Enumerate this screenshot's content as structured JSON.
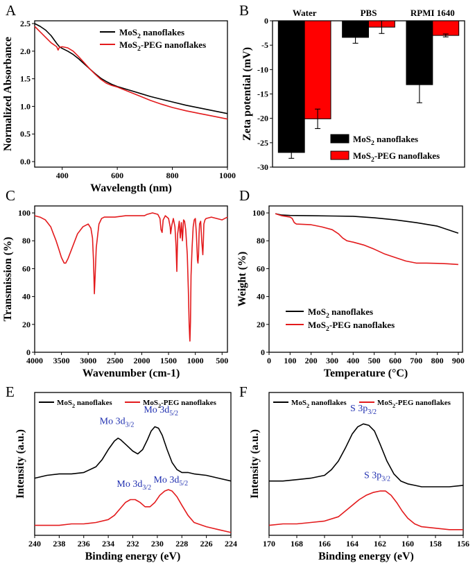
{
  "chart_data": [
    {
      "panel": "A",
      "type": "line",
      "xlabel": "Wavelength (nm)",
      "ylabel": "Normalized Absorbance",
      "xlim": [
        300,
        1000
      ],
      "ylim": [
        -0.1,
        2.55
      ],
      "xticks": [
        400,
        600,
        800,
        1000
      ],
      "yticks": [
        0.0,
        0.5,
        1.0,
        1.5,
        2.0,
        2.5
      ],
      "tick_precision": 1,
      "legend_position": "top-right",
      "series": [
        {
          "name": "MoS2 nanoflakes",
          "color": "#000000",
          "x": [
            300,
            320,
            340,
            360,
            380,
            390,
            400,
            420,
            440,
            460,
            480,
            500,
            520,
            540,
            560,
            580,
            600,
            640,
            680,
            720,
            760,
            800,
            850,
            900,
            950,
            1000
          ],
          "y": [
            2.5,
            2.45,
            2.38,
            2.28,
            2.14,
            2.08,
            2.05,
            2.0,
            1.94,
            1.86,
            1.77,
            1.68,
            1.59,
            1.51,
            1.45,
            1.4,
            1.36,
            1.3,
            1.24,
            1.18,
            1.13,
            1.08,
            1.02,
            0.97,
            0.92,
            0.87
          ]
        },
        {
          "name": "MoS2-PEG nanoflakes",
          "color": "#e31a1c",
          "x": [
            300,
            320,
            340,
            360,
            380,
            385,
            390,
            400,
            420,
            440,
            460,
            480,
            500,
            520,
            540,
            560,
            580,
            600,
            640,
            680,
            720,
            760,
            800,
            850,
            900,
            950,
            1000
          ],
          "y": [
            2.45,
            2.35,
            2.25,
            2.15,
            2.08,
            2.02,
            2.07,
            2.08,
            2.06,
            2.0,
            1.9,
            1.79,
            1.68,
            1.58,
            1.49,
            1.42,
            1.38,
            1.35,
            1.27,
            1.19,
            1.11,
            1.04,
            0.98,
            0.92,
            0.87,
            0.82,
            0.77
          ]
        }
      ]
    },
    {
      "panel": "B",
      "type": "bar",
      "ylabel": "Zeta potential (mV)",
      "categories": [
        "Water",
        "PBS",
        "RPMI 1640"
      ],
      "ylim": [
        -30,
        0
      ],
      "yticks": [
        0,
        -5,
        -10,
        -15,
        -20,
        -25,
        -30
      ],
      "tick_precision": 0,
      "legend_position": "bottom-right",
      "series": [
        {
          "name": "MoS2 nanoflakes",
          "color": "#000000",
          "values": [
            -27.0,
            -3.4,
            -13.1
          ],
          "errors": [
            1.2,
            1.2,
            3.7
          ]
        },
        {
          "name": "MoS2-PEG nanoflakes",
          "color": "#ff0000",
          "values": [
            -20.1,
            -1.3,
            -3.0
          ],
          "errors": [
            2.0,
            1.3,
            0.3
          ]
        }
      ]
    },
    {
      "panel": "C",
      "type": "line",
      "xlabel": "Wavenumber (cm-1)",
      "ylabel": "Transmission (%)",
      "xlim": [
        4000,
        400
      ],
      "ylim": [
        0,
        105
      ],
      "xticks": [
        4000,
        3500,
        3000,
        2500,
        2000,
        1500,
        1000,
        500
      ],
      "yticks": [
        0,
        20,
        40,
        60,
        80,
        100
      ],
      "tick_precision": 0,
      "series": [
        {
          "name": "",
          "color": "#e31a1c",
          "x": [
            4000,
            3900,
            3800,
            3700,
            3650,
            3600,
            3550,
            3500,
            3450,
            3420,
            3380,
            3300,
            3200,
            3100,
            3000,
            2950,
            2920,
            2900,
            2885,
            2870,
            2850,
            2800,
            2750,
            2700,
            2500,
            2300,
            2100,
            1950,
            1900,
            1800,
            1700,
            1660,
            1640,
            1620,
            1600,
            1560,
            1500,
            1470,
            1460,
            1440,
            1410,
            1380,
            1360,
            1345,
            1330,
            1300,
            1280,
            1260,
            1240,
            1220,
            1200,
            1180,
            1150,
            1130,
            1115,
            1105,
            1100,
            1090,
            1080,
            1060,
            1040,
            1020,
            1000,
            980,
            960,
            950,
            940,
            930,
            920,
            900,
            880,
            860,
            850,
            840,
            820,
            800,
            700,
            600,
            500,
            400
          ],
          "y": [
            98,
            97,
            95,
            90,
            85,
            80,
            74,
            68,
            64,
            64,
            67,
            75,
            85,
            90,
            92,
            89,
            82,
            65,
            42,
            56,
            75,
            92,
            96,
            97,
            97,
            98,
            98,
            98,
            99,
            100,
            99,
            96,
            88,
            86,
            95,
            98,
            96,
            90,
            85,
            91,
            96,
            90,
            76,
            58,
            85,
            94,
            82,
            93,
            80,
            95,
            94,
            88,
            70,
            45,
            20,
            10,
            8,
            22,
            55,
            75,
            90,
            95,
            96,
            85,
            66,
            64,
            70,
            85,
            92,
            94,
            80,
            70,
            80,
            92,
            95,
            96,
            97,
            96,
            95,
            97
          ]
        }
      ]
    },
    {
      "panel": "D",
      "type": "line",
      "xlabel": "Temperature (°C)",
      "ylabel": "Weight (%)",
      "xlim": [
        0,
        920
      ],
      "ylim": [
        0,
        105
      ],
      "xticks": [
        0,
        100,
        200,
        300,
        400,
        500,
        600,
        700,
        800,
        900
      ],
      "yticks": [
        0,
        20,
        40,
        60,
        80,
        100
      ],
      "tick_precision": 0,
      "legend_position": "bottom-left",
      "series": [
        {
          "name": "MoS2 nanoflakes",
          "color": "#000000",
          "x": [
            30,
            60,
            100,
            200,
            300,
            400,
            500,
            600,
            700,
            800,
            900
          ],
          "y": [
            99.5,
            98.5,
            98.2,
            98.0,
            97.8,
            97.6,
            96.5,
            95.0,
            93.0,
            90.5,
            85.5
          ]
        },
        {
          "name": "MoS2-PEG nanoflakes",
          "color": "#e31a1c",
          "x": [
            30,
            60,
            100,
            110,
            120,
            130,
            200,
            250,
            300,
            330,
            350,
            370,
            400,
            450,
            500,
            550,
            600,
            650,
            700,
            750,
            800,
            850,
            900
          ],
          "y": [
            99.5,
            98.0,
            97.0,
            96.0,
            93.0,
            92.0,
            91.5,
            90.0,
            88.0,
            85.0,
            82.0,
            80.0,
            79.0,
            77.0,
            74.0,
            70.5,
            68.0,
            65.5,
            64.0,
            64.0,
            63.8,
            63.5,
            63.0
          ]
        }
      ]
    },
    {
      "panel": "E",
      "type": "line",
      "xlabel": "Binding energy (eV)",
      "ylabel": "Intensity (a.u.)",
      "xlim": [
        240,
        224
      ],
      "ylim": [
        0,
        100
      ],
      "xticks": [
        240,
        238,
        236,
        234,
        232,
        230,
        228,
        226,
        224
      ],
      "tick_precision": 0,
      "legend_position": "top",
      "series": [
        {
          "name": "MoS2 nanoflakes",
          "color": "#000000",
          "x": [
            240,
            239,
            238,
            237,
            236,
            235,
            234.5,
            234,
            233.5,
            233.2,
            233,
            232.5,
            232,
            231.6,
            231.2,
            230.8,
            230.5,
            230.2,
            229.9,
            229.6,
            229.2,
            228.8,
            228.4,
            228,
            227.5,
            227,
            226,
            225,
            224
          ],
          "y": [
            40,
            42,
            43,
            43,
            44,
            48,
            53,
            60,
            66,
            68,
            67,
            63,
            59,
            57,
            60,
            67,
            73,
            76,
            75,
            70,
            60,
            51,
            46,
            44,
            44,
            43,
            42,
            40,
            38
          ]
        },
        {
          "name": "MoS2-PEG nanoflakes",
          "color": "#e31a1c",
          "x": [
            240,
            239,
            238,
            237,
            236,
            235,
            234,
            233.5,
            233,
            232.6,
            232.2,
            231.8,
            231.4,
            231,
            230.6,
            230.2,
            229.8,
            229.4,
            229.1,
            228.8,
            228.4,
            228,
            227.5,
            227,
            226,
            225,
            224
          ],
          "y": [
            7,
            7,
            7,
            8,
            8,
            9,
            11,
            14,
            19,
            23,
            25,
            25,
            23,
            20,
            20,
            23,
            28,
            31,
            32,
            31,
            27,
            21,
            14,
            9,
            6,
            4,
            2
          ]
        }
      ],
      "annotations": [
        {
          "text": "Mo 3d",
          "sub": "3/2",
          "x": 233.3,
          "y": 78
        },
        {
          "text": "Mo 3d",
          "sub": "5/2",
          "x": 229.7,
          "y": 86
        },
        {
          "text": "Mo 3d",
          "sub": "3/2",
          "x": 231.9,
          "y": 34
        },
        {
          "text": "Mo 3d",
          "sub": "5/2",
          "x": 228.9,
          "y": 37
        }
      ]
    },
    {
      "panel": "F",
      "type": "line",
      "xlabel": "Binding energy (eV)",
      "ylabel": "Intensity (a.u.)",
      "xlim": [
        170,
        156
      ],
      "ylim": [
        0,
        100
      ],
      "xticks": [
        170,
        168,
        166,
        164,
        162,
        160,
        158,
        156
      ],
      "tick_precision": 0,
      "legend_position": "top",
      "series": [
        {
          "name": "MoS2 nanoflakes",
          "color": "#000000",
          "x": [
            170,
            169,
            168,
            167,
            166,
            165.5,
            165,
            164.5,
            164,
            163.6,
            163.2,
            162.8,
            162.4,
            162,
            161.5,
            161,
            160.5,
            160,
            159.5,
            159,
            158,
            157,
            156
          ],
          "y": [
            38,
            38,
            39,
            40,
            42,
            46,
            52,
            61,
            71,
            76,
            78,
            77,
            73,
            64,
            52,
            43,
            38,
            36,
            35,
            34,
            34,
            34,
            35
          ]
        },
        {
          "name": "MoS2-PEG nanoflakes",
          "color": "#e31a1c",
          "x": [
            170,
            169,
            168,
            167,
            166,
            165,
            164.5,
            164,
            163.5,
            163,
            162.5,
            162,
            161.6,
            161.2,
            160.8,
            160.4,
            160,
            159.5,
            159,
            158,
            157,
            156
          ],
          "y": [
            7,
            8,
            8,
            9,
            10,
            13,
            17,
            21,
            25,
            28,
            30,
            31,
            31,
            28,
            23,
            17,
            12,
            8,
            6,
            5,
            4,
            4
          ]
        }
      ],
      "annotations": [
        {
          "text": "S 3p",
          "sub": "3/2",
          "x": 163.2,
          "y": 87
        },
        {
          "text": "S 3p",
          "sub": "3/2",
          "x": 162.2,
          "y": 40
        }
      ]
    }
  ]
}
